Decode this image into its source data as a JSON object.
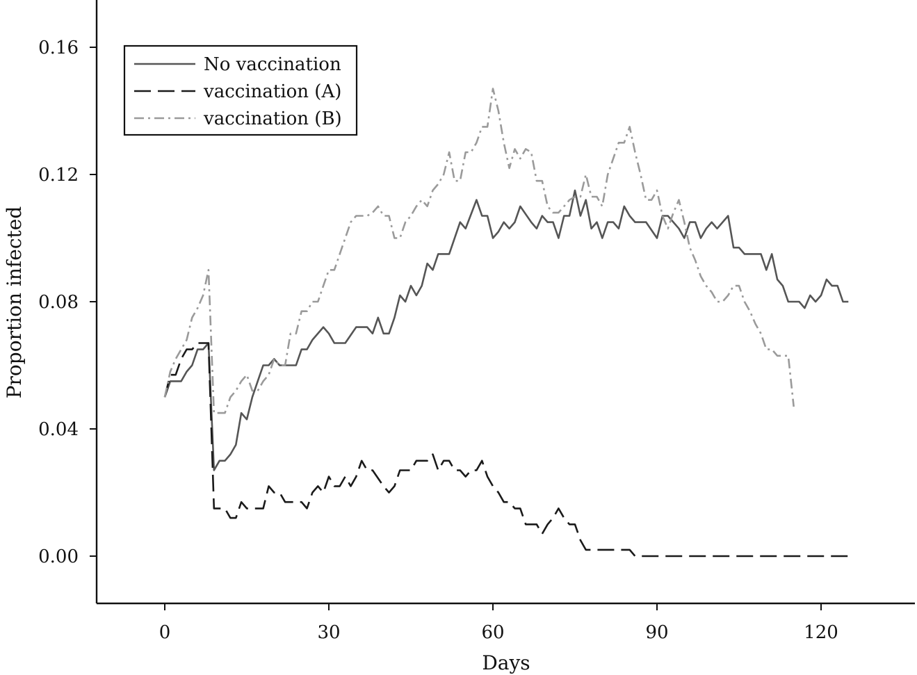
{
  "chart_data": {
    "type": "line",
    "title": "",
    "xlabel": "Days",
    "ylabel": "Proportion infected",
    "xlim": [
      -10,
      133
    ],
    "ylim": [
      -0.015,
      0.175
    ],
    "xticks": [
      0,
      30,
      60,
      90,
      120
    ],
    "xtick_labels": [
      "0",
      "30",
      "60",
      "90",
      "120"
    ],
    "yticks": [
      0.0,
      0.04,
      0.08,
      0.12,
      0.16
    ],
    "ytick_labels": [
      "0.00",
      "0.04",
      "0.08",
      "0.12",
      "0.16"
    ],
    "grid": false,
    "legend_position": "top-left",
    "series": [
      {
        "name": "No vaccination",
        "color": "#555555",
        "style": "solid",
        "points": [
          [
            0,
            0.05
          ],
          [
            1,
            0.055
          ],
          [
            3,
            0.055
          ],
          [
            4,
            0.058
          ],
          [
            5,
            0.06
          ],
          [
            6,
            0.065
          ],
          [
            7,
            0.065
          ],
          [
            8,
            0.067
          ],
          [
            9,
            0.027
          ],
          [
            10,
            0.03
          ],
          [
            11,
            0.03
          ],
          [
            12,
            0.032
          ],
          [
            13,
            0.035
          ],
          [
            14,
            0.045
          ],
          [
            15,
            0.043
          ],
          [
            16,
            0.05
          ],
          [
            17,
            0.055
          ],
          [
            18,
            0.06
          ],
          [
            19,
            0.06
          ],
          [
            20,
            0.062
          ],
          [
            21,
            0.06
          ],
          [
            22,
            0.06
          ],
          [
            24,
            0.06
          ],
          [
            25,
            0.065
          ],
          [
            26,
            0.065
          ],
          [
            27,
            0.068
          ],
          [
            29,
            0.072
          ],
          [
            30,
            0.07
          ],
          [
            31,
            0.067
          ],
          [
            33,
            0.067
          ],
          [
            35,
            0.072
          ],
          [
            37,
            0.072
          ],
          [
            38,
            0.07
          ],
          [
            39,
            0.075
          ],
          [
            40,
            0.07
          ],
          [
            41,
            0.07
          ],
          [
            42,
            0.075
          ],
          [
            43,
            0.082
          ],
          [
            44,
            0.08
          ],
          [
            45,
            0.085
          ],
          [
            46,
            0.082
          ],
          [
            47,
            0.085
          ],
          [
            48,
            0.092
          ],
          [
            49,
            0.09
          ],
          [
            50,
            0.095
          ],
          [
            52,
            0.095
          ],
          [
            54,
            0.105
          ],
          [
            55,
            0.103
          ],
          [
            57,
            0.112
          ],
          [
            58,
            0.107
          ],
          [
            59,
            0.107
          ],
          [
            60,
            0.1
          ],
          [
            61,
            0.102
          ],
          [
            62,
            0.105
          ],
          [
            63,
            0.103
          ],
          [
            64,
            0.105
          ],
          [
            65,
            0.11
          ],
          [
            67,
            0.105
          ],
          [
            68,
            0.103
          ],
          [
            69,
            0.107
          ],
          [
            70,
            0.105
          ],
          [
            71,
            0.105
          ],
          [
            72,
            0.1
          ],
          [
            73,
            0.107
          ],
          [
            74,
            0.107
          ],
          [
            75,
            0.115
          ],
          [
            76,
            0.107
          ],
          [
            77,
            0.112
          ],
          [
            78,
            0.103
          ],
          [
            79,
            0.105
          ],
          [
            80,
            0.1
          ],
          [
            81,
            0.105
          ],
          [
            82,
            0.105
          ],
          [
            83,
            0.103
          ],
          [
            84,
            0.11
          ],
          [
            85,
            0.107
          ],
          [
            86,
            0.105
          ],
          [
            88,
            0.105
          ],
          [
            90,
            0.1
          ],
          [
            91,
            0.107
          ],
          [
            92,
            0.107
          ],
          [
            94,
            0.103
          ],
          [
            95,
            0.1
          ],
          [
            96,
            0.105
          ],
          [
            97,
            0.105
          ],
          [
            98,
            0.1
          ],
          [
            99,
            0.103
          ],
          [
            100,
            0.105
          ],
          [
            101,
            0.103
          ],
          [
            103,
            0.107
          ],
          [
            104,
            0.097
          ],
          [
            105,
            0.097
          ],
          [
            106,
            0.095
          ],
          [
            107,
            0.095
          ],
          [
            109,
            0.095
          ],
          [
            110,
            0.09
          ],
          [
            111,
            0.095
          ],
          [
            112,
            0.087
          ],
          [
            113,
            0.085
          ],
          [
            114,
            0.08
          ],
          [
            116,
            0.08
          ],
          [
            117,
            0.078
          ],
          [
            118,
            0.082
          ],
          [
            119,
            0.08
          ],
          [
            120,
            0.082
          ],
          [
            121,
            0.087
          ],
          [
            122,
            0.085
          ],
          [
            123,
            0.085
          ],
          [
            124,
            0.08
          ],
          [
            125,
            0.08
          ]
        ]
      },
      {
        "name": "vaccination (A)",
        "color": "#1a1a1a",
        "style": "dashed",
        "points": [
          [
            0,
            0.05
          ],
          [
            1,
            0.057
          ],
          [
            2,
            0.057
          ],
          [
            3,
            0.062
          ],
          [
            4,
            0.065
          ],
          [
            5,
            0.065
          ],
          [
            6,
            0.067
          ],
          [
            7,
            0.067
          ],
          [
            8,
            0.067
          ],
          [
            9,
            0.015
          ],
          [
            10,
            0.015
          ],
          [
            11,
            0.015
          ],
          [
            12,
            0.012
          ],
          [
            13,
            0.012
          ],
          [
            14,
            0.017
          ],
          [
            15,
            0.015
          ],
          [
            16,
            0.015
          ],
          [
            17,
            0.015
          ],
          [
            18,
            0.015
          ],
          [
            19,
            0.022
          ],
          [
            20,
            0.02
          ],
          [
            21,
            0.02
          ],
          [
            22,
            0.017
          ],
          [
            24,
            0.017
          ],
          [
            25,
            0.017
          ],
          [
            26,
            0.015
          ],
          [
            27,
            0.02
          ],
          [
            28,
            0.022
          ],
          [
            29,
            0.02
          ],
          [
            30,
            0.025
          ],
          [
            31,
            0.022
          ],
          [
            32,
            0.022
          ],
          [
            33,
            0.025
          ],
          [
            34,
            0.022
          ],
          [
            35,
            0.025
          ],
          [
            36,
            0.03
          ],
          [
            37,
            0.027
          ],
          [
            38,
            0.027
          ],
          [
            40,
            0.022
          ],
          [
            41,
            0.02
          ],
          [
            42,
            0.022
          ],
          [
            43,
            0.027
          ],
          [
            44,
            0.027
          ],
          [
            45,
            0.027
          ],
          [
            46,
            0.03
          ],
          [
            48,
            0.03
          ],
          [
            49,
            0.032
          ],
          [
            50,
            0.027
          ],
          [
            51,
            0.03
          ],
          [
            52,
            0.03
          ],
          [
            53,
            0.027
          ],
          [
            54,
            0.027
          ],
          [
            55,
            0.025
          ],
          [
            56,
            0.027
          ],
          [
            57,
            0.027
          ],
          [
            58,
            0.03
          ],
          [
            59,
            0.025
          ],
          [
            60,
            0.022
          ],
          [
            61,
            0.02
          ],
          [
            62,
            0.017
          ],
          [
            63,
            0.017
          ],
          [
            64,
            0.015
          ],
          [
            65,
            0.015
          ],
          [
            66,
            0.01
          ],
          [
            67,
            0.01
          ],
          [
            68,
            0.01
          ],
          [
            69,
            0.007
          ],
          [
            70,
            0.01
          ],
          [
            71,
            0.012
          ],
          [
            72,
            0.015
          ],
          [
            73,
            0.012
          ],
          [
            74,
            0.01
          ],
          [
            75,
            0.01
          ],
          [
            76,
            0.005
          ],
          [
            77,
            0.002
          ],
          [
            78,
            0.002
          ],
          [
            85,
            0.002
          ],
          [
            86,
            0.0
          ],
          [
            125,
            0.0
          ]
        ]
      },
      {
        "name": "vaccination (B)",
        "color": "#9a9a9a",
        "style": "dashdot",
        "points": [
          [
            0,
            0.05
          ],
          [
            1,
            0.058
          ],
          [
            2,
            0.062
          ],
          [
            3,
            0.065
          ],
          [
            4,
            0.068
          ],
          [
            5,
            0.075
          ],
          [
            6,
            0.078
          ],
          [
            7,
            0.082
          ],
          [
            8,
            0.09
          ],
          [
            9,
            0.045
          ],
          [
            10,
            0.045
          ],
          [
            11,
            0.045
          ],
          [
            12,
            0.05
          ],
          [
            13,
            0.052
          ],
          [
            14,
            0.055
          ],
          [
            15,
            0.057
          ],
          [
            16,
            0.052
          ],
          [
            17,
            0.052
          ],
          [
            18,
            0.055
          ],
          [
            19,
            0.057
          ],
          [
            20,
            0.062
          ],
          [
            21,
            0.06
          ],
          [
            22,
            0.06
          ],
          [
            23,
            0.07
          ],
          [
            24,
            0.07
          ],
          [
            25,
            0.077
          ],
          [
            26,
            0.077
          ],
          [
            27,
            0.08
          ],
          [
            28,
            0.08
          ],
          [
            29,
            0.085
          ],
          [
            30,
            0.09
          ],
          [
            31,
            0.09
          ],
          [
            32,
            0.095
          ],
          [
            33,
            0.1
          ],
          [
            34,
            0.105
          ],
          [
            35,
            0.107
          ],
          [
            36,
            0.107
          ],
          [
            37,
            0.107
          ],
          [
            38,
            0.108
          ],
          [
            39,
            0.11
          ],
          [
            40,
            0.107
          ],
          [
            41,
            0.107
          ],
          [
            42,
            0.1
          ],
          [
            43,
            0.1
          ],
          [
            44,
            0.105
          ],
          [
            45,
            0.107
          ],
          [
            46,
            0.11
          ],
          [
            47,
            0.112
          ],
          [
            48,
            0.11
          ],
          [
            49,
            0.115
          ],
          [
            50,
            0.117
          ],
          [
            51,
            0.12
          ],
          [
            52,
            0.127
          ],
          [
            53,
            0.118
          ],
          [
            54,
            0.118
          ],
          [
            55,
            0.127
          ],
          [
            56,
            0.127
          ],
          [
            57,
            0.13
          ],
          [
            58,
            0.135
          ],
          [
            59,
            0.135
          ],
          [
            60,
            0.147
          ],
          [
            61,
            0.14
          ],
          [
            62,
            0.13
          ],
          [
            63,
            0.122
          ],
          [
            64,
            0.128
          ],
          [
            65,
            0.125
          ],
          [
            66,
            0.128
          ],
          [
            67,
            0.127
          ],
          [
            68,
            0.118
          ],
          [
            69,
            0.118
          ],
          [
            70,
            0.11
          ],
          [
            71,
            0.108
          ],
          [
            72,
            0.108
          ],
          [
            73,
            0.11
          ],
          [
            74,
            0.112
          ],
          [
            75,
            0.113
          ],
          [
            76,
            0.113
          ],
          [
            77,
            0.12
          ],
          [
            78,
            0.113
          ],
          [
            79,
            0.113
          ],
          [
            80,
            0.11
          ],
          [
            81,
            0.12
          ],
          [
            82,
            0.125
          ],
          [
            83,
            0.13
          ],
          [
            84,
            0.13
          ],
          [
            85,
            0.135
          ],
          [
            86,
            0.127
          ],
          [
            87,
            0.12
          ],
          [
            88,
            0.112
          ],
          [
            89,
            0.112
          ],
          [
            90,
            0.115
          ],
          [
            91,
            0.107
          ],
          [
            92,
            0.103
          ],
          [
            93,
            0.108
          ],
          [
            94,
            0.112
          ],
          [
            95,
            0.105
          ],
          [
            96,
            0.097
          ],
          [
            97,
            0.093
          ],
          [
            98,
            0.088
          ],
          [
            99,
            0.085
          ],
          [
            100,
            0.083
          ],
          [
            101,
            0.08
          ],
          [
            102,
            0.08
          ],
          [
            103,
            0.082
          ],
          [
            104,
            0.085
          ],
          [
            105,
            0.085
          ],
          [
            106,
            0.08
          ],
          [
            107,
            0.077
          ],
          [
            108,
            0.073
          ],
          [
            109,
            0.07
          ],
          [
            110,
            0.065
          ],
          [
            111,
            0.065
          ],
          [
            112,
            0.063
          ],
          [
            113,
            0.063
          ],
          [
            114,
            0.063
          ],
          [
            115,
            0.047
          ]
        ]
      }
    ]
  }
}
